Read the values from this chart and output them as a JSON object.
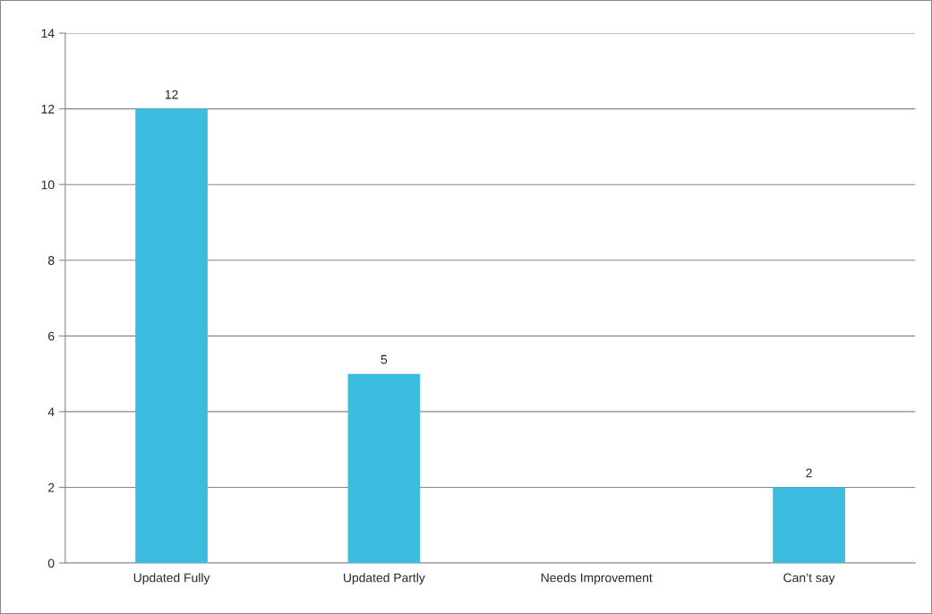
{
  "chart_data": {
    "type": "bar",
    "categories": [
      "Updated Fully",
      "Updated Partly",
      "Needs Improvement",
      "Can’t say"
    ],
    "values": [
      12,
      5,
      0,
      2
    ],
    "color": "#3bbde0",
    "value_labels": [
      "12",
      "5",
      null,
      "2"
    ],
    "ylim": [
      0,
      14
    ],
    "yticks": [
      0,
      2,
      4,
      6,
      8,
      10,
      12,
      14
    ],
    "grid": "y",
    "legend": false
  }
}
